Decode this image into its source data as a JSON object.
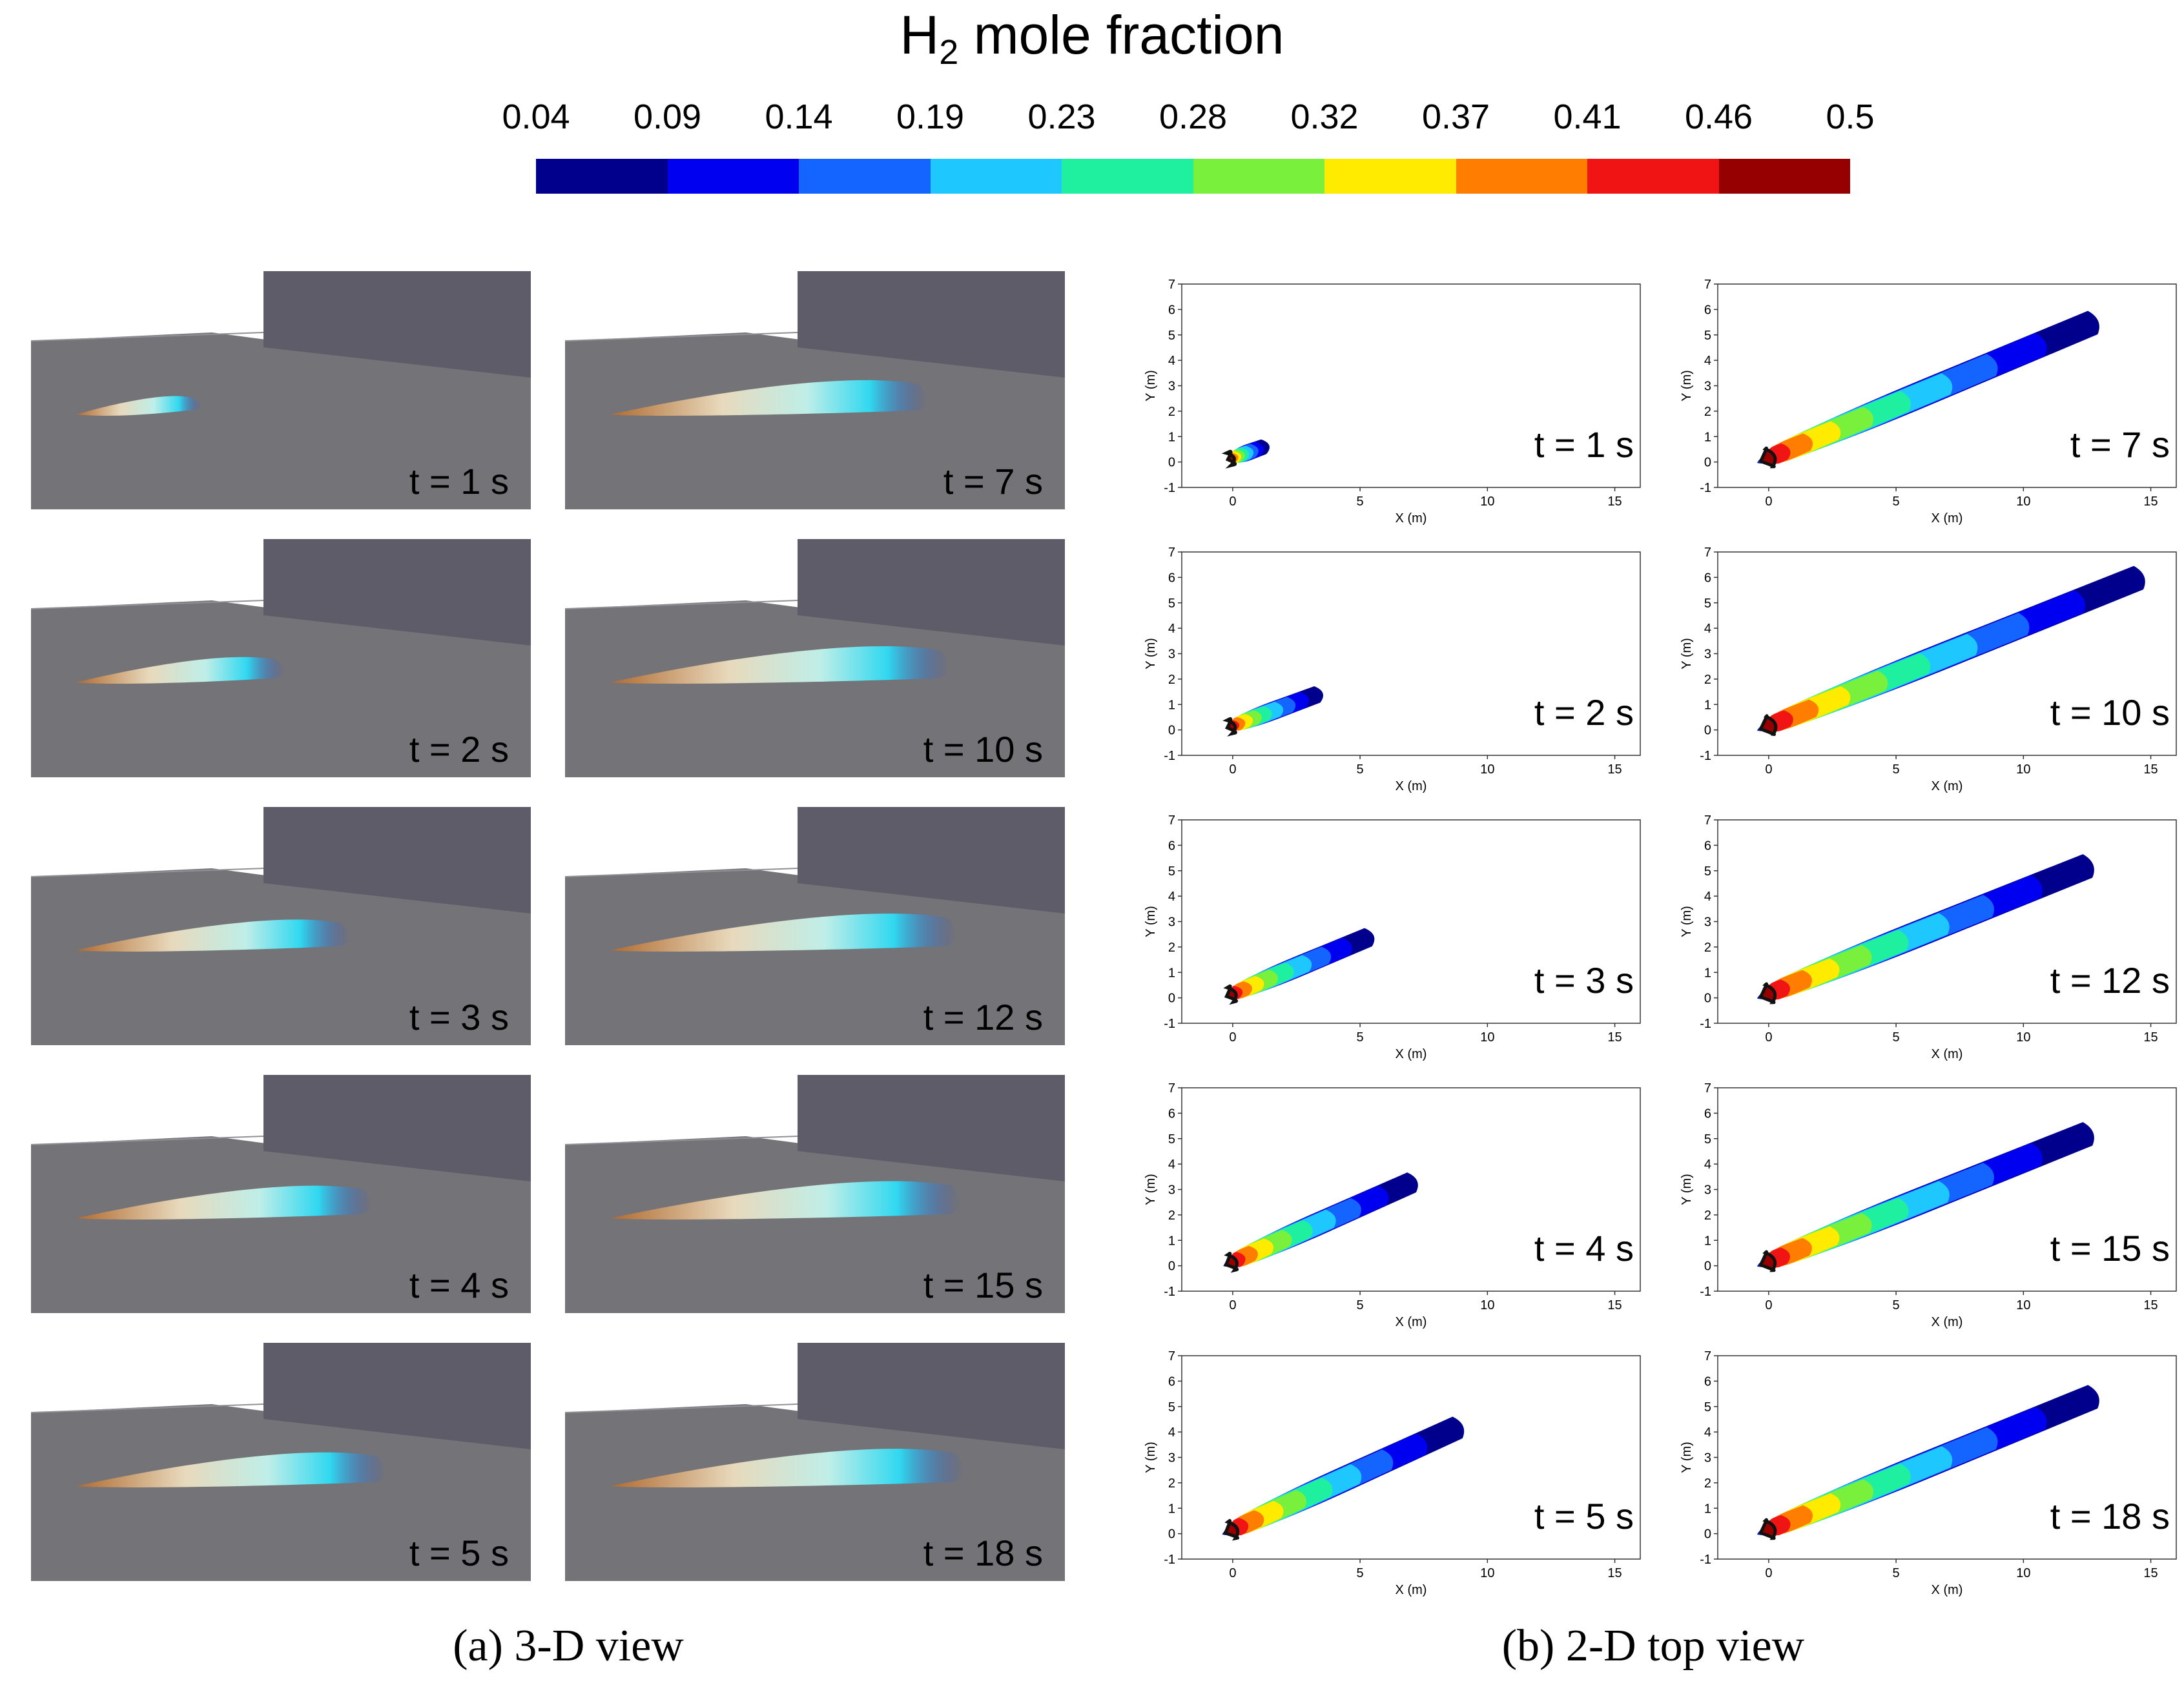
{
  "legend": {
    "title_main": "H",
    "title_sub": "2",
    "title_rest": " mole fraction",
    "ticks": [
      "0.04",
      "0.09",
      "0.14",
      "0.19",
      "0.23",
      "0.28",
      "0.32",
      "0.37",
      "0.41",
      "0.46",
      "0.5"
    ],
    "colors": [
      "#00008c",
      "#0000f0",
      "#1464ff",
      "#1ec8ff",
      "#1ef0a0",
      "#78f03c",
      "#ffeb00",
      "#ff7d00",
      "#f01414",
      "#960000"
    ]
  },
  "panels_3d": {
    "times": [
      "t = 1 s",
      "t = 7 s",
      "t = 2 s",
      "t = 10 s",
      "t = 3 s",
      "t = 12 s",
      "t = 4 s",
      "t = 15 s",
      "t = 5 s",
      "t = 18 s"
    ]
  },
  "panels_2d": {
    "times": [
      "t = 1 s",
      "t = 7 s",
      "t = 2 s",
      "t = 10 s",
      "t = 3 s",
      "t = 12 s",
      "t = 4 s",
      "t = 15 s",
      "t = 5 s",
      "t = 18 s"
    ],
    "y_ticks": [
      "7",
      "6",
      "5",
      "4",
      "3",
      "2",
      "1",
      "0",
      "-1"
    ],
    "x_ticks": [
      "0",
      "5",
      "10",
      "15"
    ],
    "xlabel": "X (m)",
    "ylabel": "Y (m)"
  },
  "captions": {
    "left": "(a) 3-D view",
    "right": "(b) 2-D top view"
  }
}
